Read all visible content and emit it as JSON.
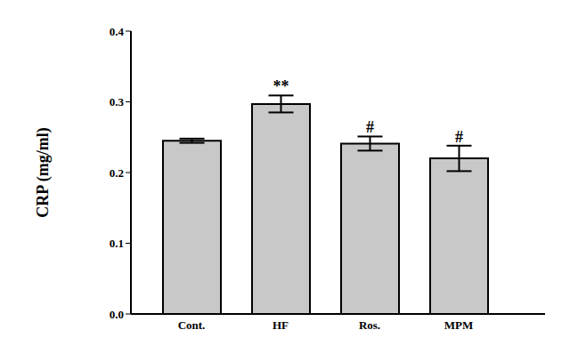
{
  "chart_data": {
    "type": "bar",
    "y_label": "CRP (mg/ml)",
    "categories": [
      "Cont.",
      "HF",
      "Ros.",
      "MPM"
    ],
    "values": [
      0.245,
      0.297,
      0.241,
      0.22
    ],
    "error": [
      0.003,
      0.012,
      0.01,
      0.018
    ],
    "color": "#c8c8c8",
    "ylim": [
      0,
      0.4
    ],
    "yticks": [
      {
        "value": 0,
        "label": "0.0"
      },
      0.1,
      0.2,
      0.3,
      0.4
    ],
    "grid": false,
    "annotations": [
      {
        "category": "HF",
        "text": "**"
      },
      {
        "category": "Ros.",
        "text": "#"
      },
      {
        "category": "MPM",
        "text": "#"
      }
    ]
  }
}
